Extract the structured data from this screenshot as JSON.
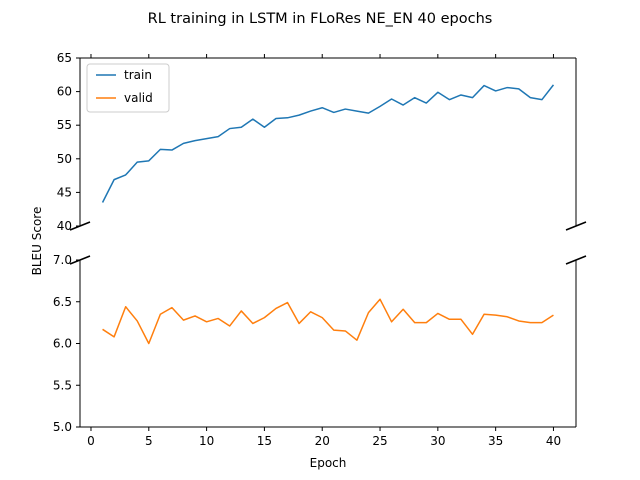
{
  "figure": {
    "title": "RL training in LSTM in FLoRes NE_EN 40 epochs",
    "ylabel": "BLEU Score",
    "xlabel": "Epoch"
  },
  "chart_data": {
    "type": "line",
    "title": "RL training in LSTM in FLoRes NE_EN 40 epochs",
    "xlabel": "Epoch",
    "ylabel": "BLEU Score",
    "layout": "broken y-axis, two stacked panels sharing x",
    "xlim": [
      -0.95,
      41.95
    ],
    "xticks": [
      0,
      5,
      10,
      15,
      20,
      25,
      30,
      35,
      40
    ],
    "x": [
      1,
      2,
      3,
      4,
      5,
      6,
      7,
      8,
      9,
      10,
      11,
      12,
      13,
      14,
      15,
      16,
      17,
      18,
      19,
      20,
      21,
      22,
      23,
      24,
      25,
      26,
      27,
      28,
      29,
      30,
      31,
      32,
      33,
      34,
      35,
      36,
      37,
      38,
      39,
      40
    ],
    "panels": [
      {
        "ylim": [
          40,
          65
        ],
        "yticks": [
          "40",
          "45",
          "50",
          "55",
          "60",
          "65"
        ],
        "legend": "top-left",
        "series": [
          {
            "name": "train",
            "color": "#1f77b4",
            "values": [
              43.5,
              46.9,
              47.6,
              49.5,
              49.7,
              51.4,
              51.3,
              52.3,
              52.7,
              53.0,
              53.3,
              54.5,
              54.7,
              55.9,
              54.7,
              56.0,
              56.1,
              56.5,
              57.1,
              57.6,
              56.9,
              57.4,
              57.1,
              56.8,
              57.8,
              58.9,
              58.0,
              59.1,
              58.3,
              59.9,
              58.8,
              59.5,
              59.1,
              60.9,
              60.1,
              60.6,
              60.4,
              59.1,
              58.8,
              61.0
            ]
          }
        ]
      },
      {
        "ylim": [
          5.0,
          7.0
        ],
        "yticks": [
          "5.0",
          "5.5",
          "6.0",
          "6.5",
          "7.0"
        ],
        "series": [
          {
            "name": "valid",
            "color": "#ff7f0e",
            "values": [
              6.17,
              6.08,
              6.44,
              6.27,
              6.0,
              6.35,
              6.43,
              6.28,
              6.33,
              6.26,
              6.3,
              6.21,
              6.39,
              6.24,
              6.31,
              6.42,
              6.49,
              6.24,
              6.38,
              6.31,
              6.16,
              6.15,
              6.04,
              6.37,
              6.53,
              6.26,
              6.41,
              6.25,
              6.25,
              6.36,
              6.29,
              6.29,
              6.11,
              6.35,
              6.34,
              6.32,
              6.27,
              6.25,
              6.25,
              6.34
            ]
          }
        ]
      }
    ],
    "grid": false
  }
}
